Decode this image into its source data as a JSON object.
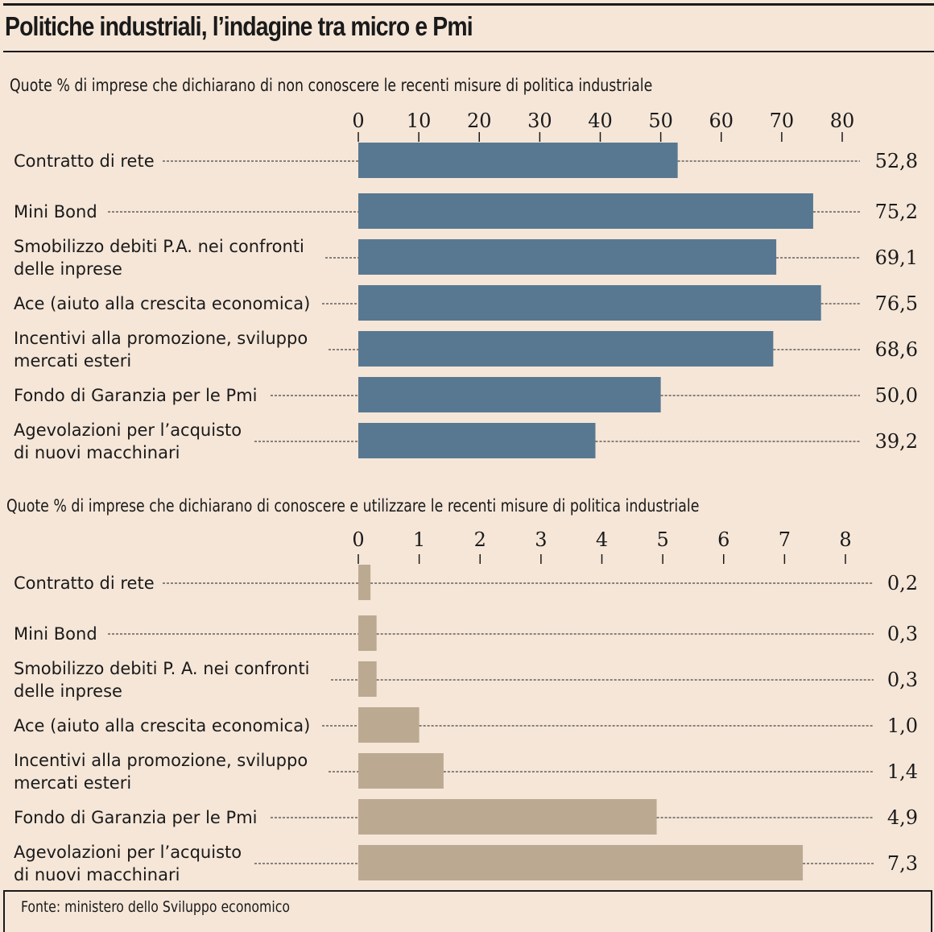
{
  "header": {
    "title": "Politiche industriali, l’indagine tra micro e Pmi"
  },
  "source": "Fonte: ministero dello Sviluppo economico",
  "colors": {
    "background": "#f5e6d8",
    "top_bar": "#587891",
    "bottom_bar": "#bba991",
    "text": "#1a1a1a"
  },
  "chart_data": [
    {
      "type": "bar",
      "orientation": "horizontal",
      "title": "Quote % di imprese che dichiarano di non conoscere le recenti misure di politica industriale",
      "categories": [
        [
          "Contratto di rete"
        ],
        [
          "Mini Bond"
        ],
        [
          "Smobilizzo debiti P.A. nei confronti",
          "delle inprese"
        ],
        [
          "Ace (aiuto alla crescita economica)"
        ],
        [
          "Incentivi alla promozione, sviluppo",
          "mercati esteri"
        ],
        [
          "Fondo di Garanzia per le Pmi"
        ],
        [
          "Agevolazioni per l’acquisto",
          "di nuovi macchinari"
        ]
      ],
      "values": [
        52.8,
        75.2,
        69.1,
        76.5,
        68.6,
        50.0,
        39.2
      ],
      "value_labels": [
        "52,8",
        "75,2",
        "69,1",
        "76,5",
        "68,6",
        "50,0",
        "39,2"
      ],
      "xticks": [
        0,
        10,
        20,
        30,
        40,
        50,
        60,
        70,
        80
      ],
      "xlim": [
        0,
        80
      ],
      "axis_position": "top",
      "grid": false,
      "legend": "none"
    },
    {
      "type": "bar",
      "orientation": "horizontal",
      "title": "Quote % di imprese che dichiarano di conoscere e utilizzare le recenti misure di politica industriale",
      "categories": [
        [
          "Contratto di rete"
        ],
        [
          "Mini Bond"
        ],
        [
          "Smobilizzo debiti P. A. nei confronti",
          "delle inprese"
        ],
        [
          "Ace (aiuto alla crescita economica)"
        ],
        [
          "Incentivi alla promozione, sviluppo",
          "mercati esteri"
        ],
        [
          "Fondo di Garanzia per le Pmi"
        ],
        [
          "Agevolazioni per l’acquisto",
          "di nuovi macchinari"
        ]
      ],
      "values": [
        0.2,
        0.3,
        0.3,
        1.0,
        1.4,
        4.9,
        7.3
      ],
      "value_labels": [
        "0,2",
        "0,3",
        "0,3",
        "1,0",
        "1,4",
        "4,9",
        "7,3"
      ],
      "xticks": [
        0,
        1,
        2,
        3,
        4,
        5,
        6,
        7,
        8
      ],
      "xlim": [
        0,
        8
      ],
      "axis_position": "top",
      "grid": false,
      "legend": "none"
    }
  ]
}
